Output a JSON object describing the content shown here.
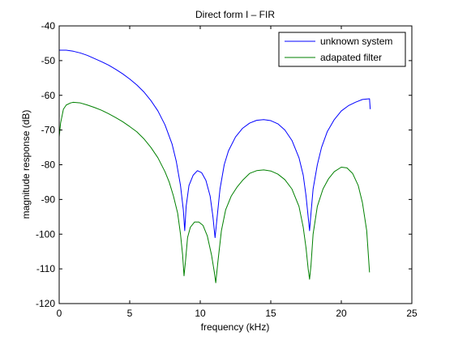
{
  "chart_data": {
    "type": "line",
    "title": "Direct form I – FIR",
    "xlabel": "frequency (kHz)",
    "ylabel": "magnitude response (dB)",
    "xlim": [
      0,
      25
    ],
    "ylim": [
      -120,
      -40
    ],
    "xticks": [
      0,
      5,
      10,
      15,
      20,
      25
    ],
    "yticks": [
      -120,
      -110,
      -100,
      -90,
      -80,
      -70,
      -60,
      -50,
      -40
    ],
    "xtick_labels": [
      "0",
      "5",
      "10",
      "15",
      "20",
      "25"
    ],
    "ytick_labels": [
      "-120",
      "-110",
      "-100",
      "-90",
      "-80",
      "-70",
      "-60",
      "-50",
      "-40"
    ],
    "grid": false,
    "legend_position": "top-right",
    "series": [
      {
        "name": "unknown system",
        "color": "#0000ff",
        "x": [
          0,
          0.5,
          1,
          1.5,
          2,
          2.5,
          3,
          3.5,
          4,
          4.5,
          5,
          5.5,
          6,
          6.5,
          7,
          7.5,
          8,
          8.3,
          8.6,
          8.8,
          8.9,
          9.0,
          9.2,
          9.5,
          9.8,
          10.1,
          10.4,
          10.7,
          10.9,
          11.05,
          11.2,
          11.4,
          11.7,
          12,
          12.5,
          13,
          13.5,
          14,
          14.5,
          15,
          15.5,
          16,
          16.5,
          17,
          17.3,
          17.5,
          17.65,
          17.75,
          17.85,
          18,
          18.3,
          18.6,
          19,
          19.5,
          20,
          20.5,
          21,
          21.5,
          22,
          22.05
        ],
        "y": [
          -47,
          -47,
          -47.3,
          -47.8,
          -48.5,
          -49.4,
          -50.3,
          -51.3,
          -52.5,
          -53.8,
          -55.3,
          -57,
          -59,
          -61.5,
          -64.5,
          -68.5,
          -74,
          -79,
          -86,
          -93,
          -99,
          -92,
          -86,
          -83,
          -81.7,
          -82.3,
          -84.5,
          -89,
          -95,
          -101,
          -95,
          -87,
          -80,
          -76,
          -72,
          -69.5,
          -68,
          -67.2,
          -67,
          -67.3,
          -68.2,
          -70,
          -73,
          -78,
          -83,
          -89,
          -95,
          -99,
          -94,
          -87,
          -80,
          -75,
          -70.5,
          -67,
          -64.5,
          -63,
          -62,
          -61.2,
          -61,
          -64
        ]
      },
      {
        "name": "adapated filter",
        "color": "#008000",
        "x": [
          0,
          0.1,
          0.3,
          0.5,
          0.8,
          1,
          1.5,
          2,
          2.5,
          3,
          3.5,
          4,
          4.5,
          5,
          5.5,
          6,
          6.5,
          7,
          7.5,
          7.8,
          8.1,
          8.4,
          8.6,
          8.75,
          8.85,
          8.95,
          9.1,
          9.3,
          9.6,
          9.9,
          10.2,
          10.5,
          10.8,
          11.0,
          11.1,
          11.25,
          11.5,
          11.8,
          12.2,
          12.6,
          13,
          13.5,
          14,
          14.5,
          15,
          15.5,
          16,
          16.5,
          17,
          17.3,
          17.5,
          17.65,
          17.75,
          17.85,
          18,
          18.3,
          18.7,
          19.1,
          19.5,
          20,
          20.4,
          20.8,
          21.2,
          21.5,
          21.8,
          22.0
        ],
        "y": [
          -72,
          -68,
          -64,
          -62.8,
          -62.2,
          -62,
          -62.2,
          -62.8,
          -63.5,
          -64.3,
          -65.3,
          -66.4,
          -67.6,
          -69,
          -70.5,
          -72.5,
          -75,
          -78,
          -82,
          -85,
          -89,
          -94,
          -100,
          -106,
          -112,
          -108,
          -101,
          -98,
          -96.5,
          -96.5,
          -97.5,
          -100.5,
          -106,
          -111,
          -114,
          -108,
          -99,
          -93,
          -89,
          -86.5,
          -84.5,
          -82.5,
          -81.7,
          -81.5,
          -81.8,
          -82.7,
          -84.3,
          -87,
          -92,
          -98,
          -104,
          -110,
          -113,
          -109,
          -100,
          -92,
          -87,
          -84,
          -82,
          -80.7,
          -80.9,
          -82.5,
          -86,
          -91,
          -99,
          -111
        ]
      }
    ]
  }
}
